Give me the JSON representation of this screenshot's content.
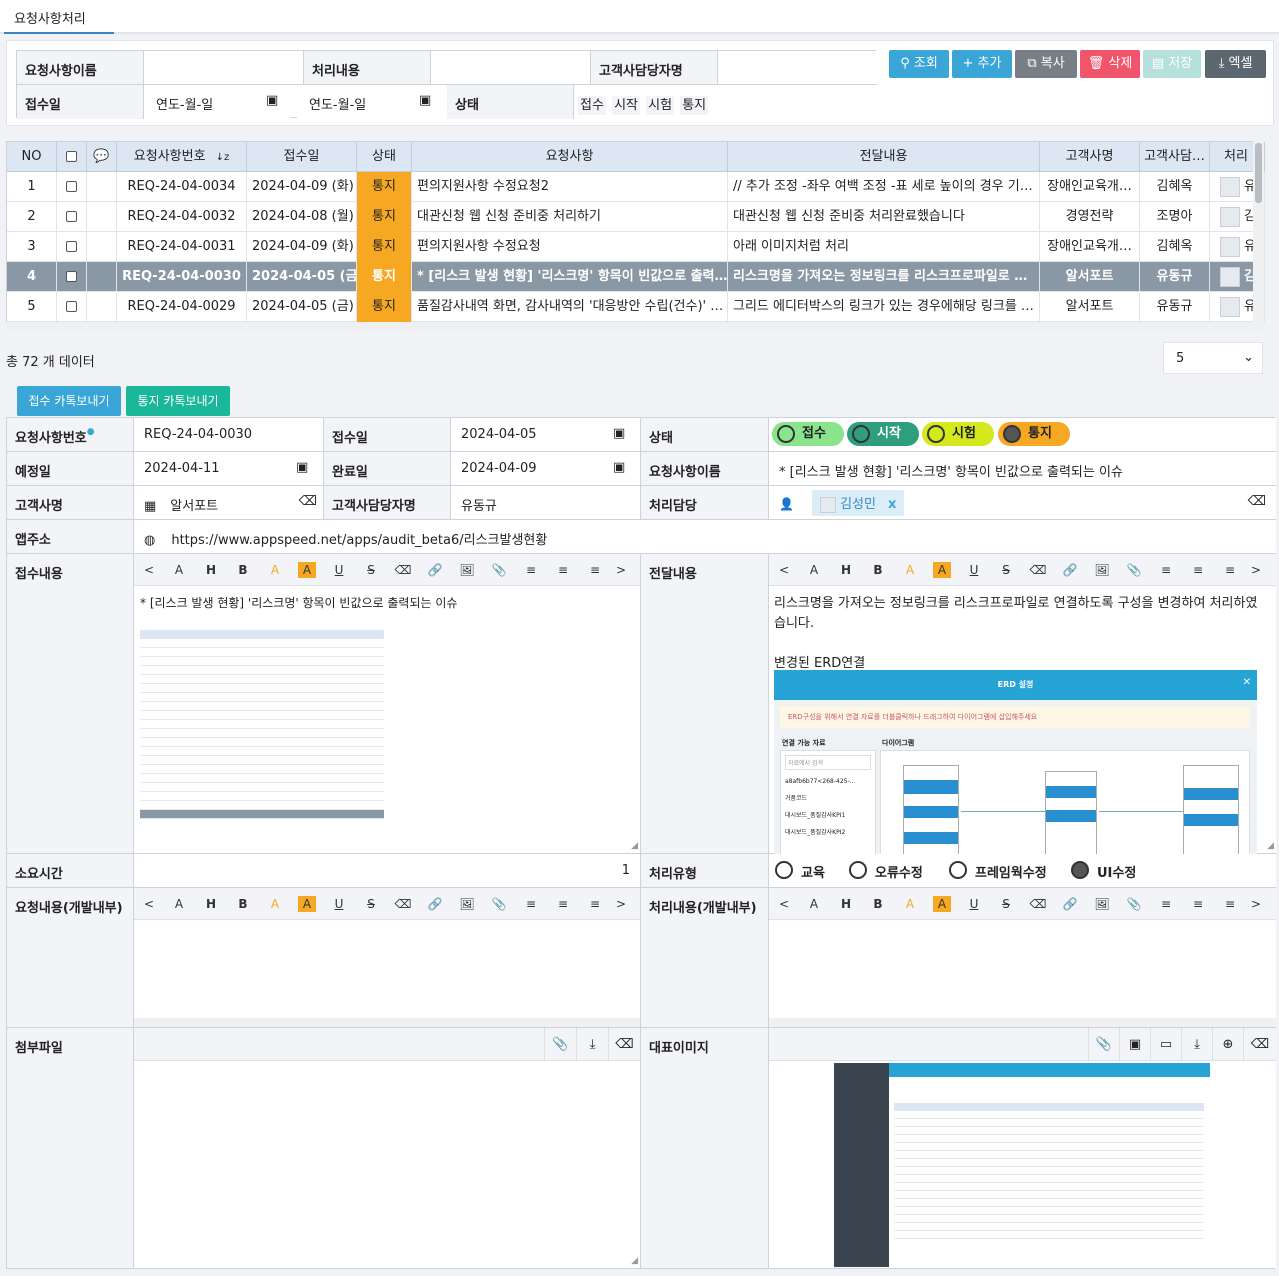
{
  "tabs": [
    {
      "label": "요청사항처리"
    }
  ],
  "search": {
    "req_name_label": "요청사항이름",
    "proc_label": "처리내용",
    "contact_label": "고객사담당자명",
    "recv_date_label": "접수일",
    "date_from": "연도-월-일",
    "date_to": "연도-월-일",
    "status_label": "상태",
    "status_options": [
      "접수",
      "시작",
      "시험",
      "통지"
    ]
  },
  "buttons": {
    "search": "조회",
    "add": "추가",
    "copy": "복사",
    "delete": "삭제",
    "save": "저장",
    "excel": "엑셀"
  },
  "grid": {
    "headers": [
      "NO",
      "",
      "",
      "요청사항번호",
      "접수일",
      "상태",
      "요청사항",
      "전달내용",
      "고객사명",
      "고객사담…",
      "처리"
    ],
    "rows": [
      {
        "no": "1",
        "id": "REQ-24-04-0034",
        "date": "2024-04-09 (화)",
        "status": "통지",
        "req": "편의지원사항 수정요청2",
        "msg": "// 추가 조정  -좌우 여백 조정 -표 세로 높이의 경우 기…",
        "cust": "장애인교육개…",
        "contact": "김혜옥",
        "handler": "유"
      },
      {
        "no": "2",
        "id": "REQ-24-04-0032",
        "date": "2024-04-08 (월)",
        "status": "통지",
        "req": "대관신청 웹 신청 준비중 처리하기",
        "msg": "대관신청 웹 신청 준비중 처리완료했습니다",
        "cust": "경영전략",
        "contact": "조명아",
        "handler": "김"
      },
      {
        "no": "3",
        "id": "REQ-24-04-0031",
        "date": "2024-04-09 (화)",
        "status": "통지",
        "req": "편의지원사항 수정요청",
        "msg": "아래 이미지처럼 처리",
        "cust": "장애인교육개…",
        "contact": "김혜옥",
        "handler": "유"
      },
      {
        "no": "4",
        "id": "REQ-24-04-0030",
        "date": "2024-04-05 (금)",
        "status": "통지",
        "req": "* [리스크 발생 현황] '리스크명' 항목이 빈값으로 출력…",
        "msg": "리스크명을 가져오는 정보링크를  리스크프로파일로 …",
        "cust": "알서포트",
        "contact": "유동규",
        "handler": "김"
      },
      {
        "no": "5",
        "id": "REQ-24-04-0029",
        "date": "2024-04-05 (금)",
        "status": "통지",
        "req": "품질감사내역 화면, 감사내역의 '대응방안 수립(건수)' …",
        "msg": "그리드 에디터박스의 링크가 있는 경우에해당 링크를 …",
        "cust": "알서포트",
        "contact": "유동규",
        "handler": "유"
      }
    ],
    "selected_row": 4
  },
  "total_text": "총 72 개 데이터",
  "page_size": "5",
  "kakao": {
    "recv": "접수 카톡보내기",
    "notify": "통지 카톡보내기"
  },
  "form": {
    "req_no_label": "요청사항번호",
    "req_no": "REQ-24-04-0030",
    "recv_label": "접수일",
    "recv_date": "2024-04-05",
    "status_label": "상태",
    "status_pills": [
      "접수",
      "시작",
      "시험",
      "통지"
    ],
    "plan_label": "예정일",
    "plan_date": "2024-04-11",
    "done_label": "완료일",
    "done_date": "2024-04-09",
    "name_label": "요청사항이름",
    "name": "* [리스크 발생 현황] '리스크명' 항목이 빈값으로 출력되는 이슈",
    "cust_label": "고객사명",
    "cust": "알서포트",
    "contact_label": "고객사담당자명",
    "contact": "유동규",
    "handler_label": "처리담당",
    "handler": "김성민",
    "handler_remove": "x",
    "app_label": "앱주소",
    "app_url": "https://www.appspeed.net/apps/audit_beta6/리스크발생현황",
    "recv_content_label": "접수내용",
    "recv_content": "* [리스크 발생 현황] '리스크명' 항목이 빈값으로 출력되는 이슈",
    "msg_label": "전달내용",
    "msg_line1": "리스크명을 가져오는 정보링크를  리스크프로파일로 연결하도록 구성을 변경하여 처리하였습니다.",
    "msg_line2": "변경된 ERD연결",
    "erd_title": "ERD 설정",
    "erd_notice": "ERD구성을 위해서 연결 자료를 더블클릭하나 드래그하여 다이어그램에 삽입해주세요",
    "erd_left": "연결 가능 자료",
    "erd_right": "다이어그램",
    "erd_search": "자료에서 검색",
    "erd_items": [
      "a8afb6b77<268-425-…",
      "거품코드",
      "대시보드_품질감사KPI1",
      "대시보드_품질감사KPI2"
    ],
    "time_label": "소요시간",
    "time": "1",
    "type_label": "처리유형",
    "types": [
      "교육",
      "오류수정",
      "프레임웍수정",
      "UI수정"
    ],
    "type_selected": "UI수정",
    "dev_req_label": "요청내용(개발내부)",
    "dev_proc_label": "처리내용(개발내부)",
    "attach_label": "첨부파일",
    "rep_img_label": "대표이미지"
  },
  "toolbar": [
    "<",
    "A",
    "H",
    "B",
    "A",
    "A",
    "U",
    "S",
    "⌫",
    "🔗",
    "🖼",
    "📎",
    "≡",
    "≡",
    "≡",
    ">"
  ],
  "colors": {
    "search": "#3aa6d8",
    "add": "#3aa6d8",
    "copy": "#777e86",
    "delete": "#f1556c",
    "save": "#b6e0dc",
    "excel": "#5c6772",
    "kakao_recv": "#3aa6d8",
    "kakao_notify": "#1bb79a",
    "status": "#f7a823"
  }
}
